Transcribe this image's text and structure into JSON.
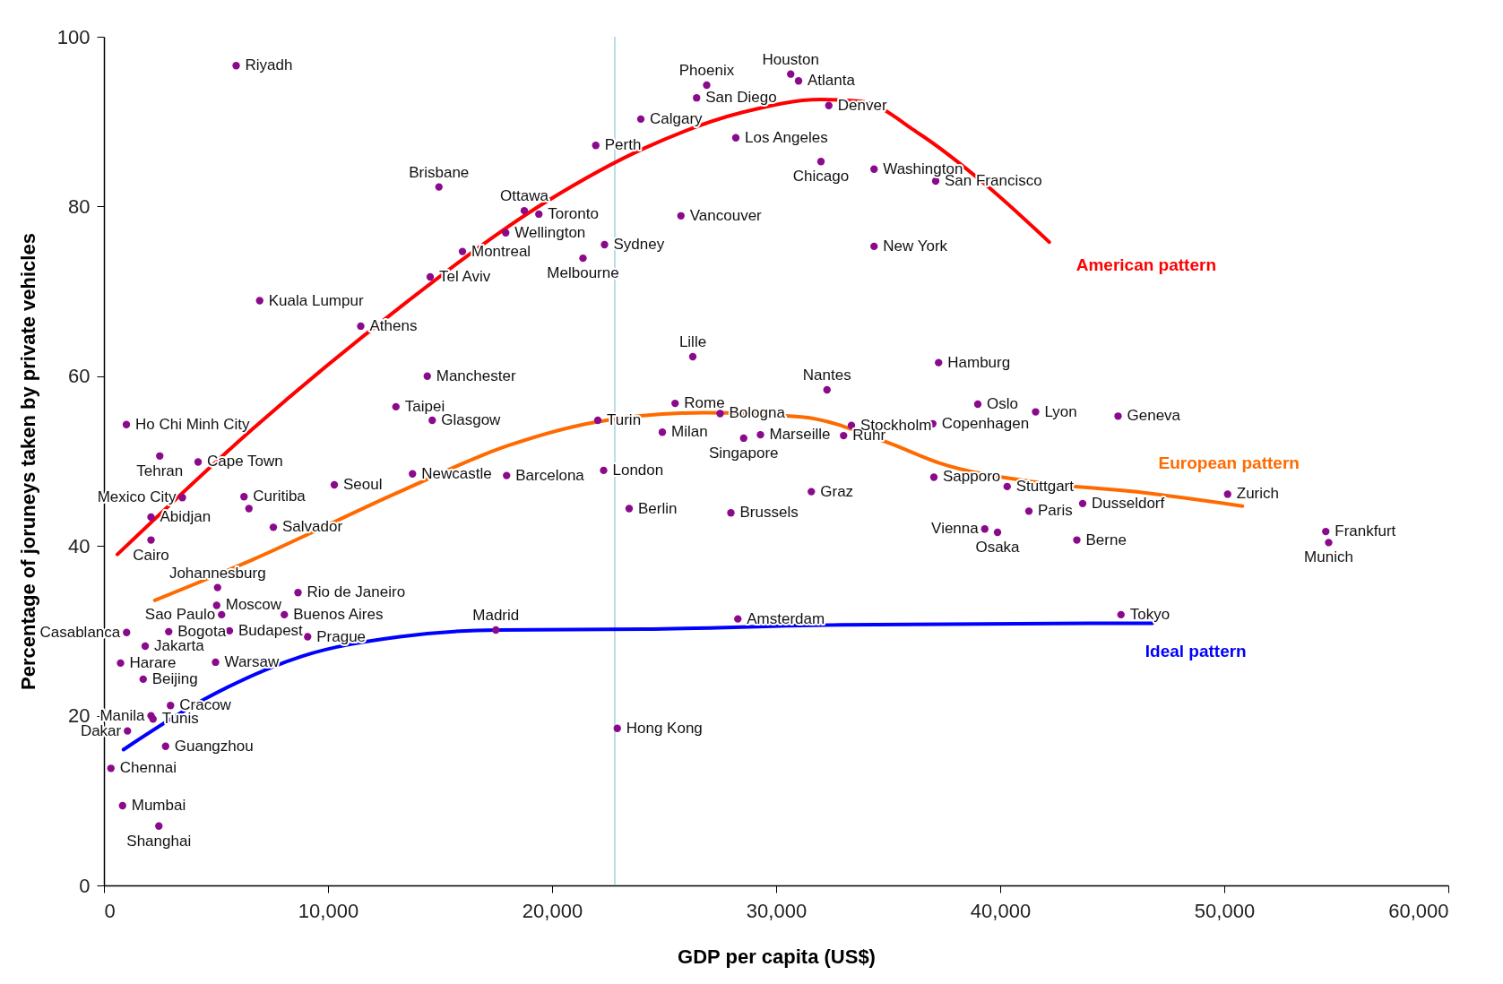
{
  "chart_data": {
    "type": "scatter",
    "xlabel": "GDP per capita (US$)",
    "ylabel": "Percentage of joruneys taken by private vehicles",
    "xlim": [
      0,
      60000
    ],
    "ylim": [
      0,
      100
    ],
    "xticks": [
      0,
      {
        "value": 10000,
        "label": "10,000"
      },
      {
        "value": 20000,
        "label": "20,000"
      },
      {
        "value": 30000,
        "label": "30,000"
      },
      {
        "value": 40000,
        "label": "40,000"
      },
      {
        "value": 50000,
        "label": "50,000"
      },
      {
        "value": 60000,
        "label": "60,000"
      }
    ],
    "yticks": [
      0,
      20,
      40,
      60,
      80,
      100
    ],
    "grid": false,
    "marker": "circle",
    "series": [
      {
        "color": "#8b0a8b",
        "x": [
          5900,
          26900,
          30650,
          31000,
          26450,
          32350,
          23960,
          21950,
          28200,
          32000,
          34370,
          37120,
          14950,
          25750,
          18760,
          19410,
          17930,
          22340,
          21380,
          16000,
          34370,
          14560,
          6950,
          11460,
          26280,
          37250,
          32270,
          14430,
          25490,
          39000,
          41580,
          45260,
          27500,
          33360,
          36990,
          13030,
          14650,
          22040,
          1000,
          24920,
          28550,
          29300,
          33010,
          2490,
          4200,
          37040,
          22300,
          17970,
          13770,
          10280,
          6250,
          6470,
          3500,
          7560,
          31570,
          40310,
          50150,
          43680,
          41280,
          23440,
          27980,
          2100,
          39310,
          39880,
          43420,
          54530,
          54660,
          2100,
          5070,
          8660,
          5030,
          5250,
          8050,
          17490,
          28290,
          45390,
          1010,
          2890,
          5600,
          9090,
          1840,
          740,
          4980,
          1750,
          2100,
          2190,
          2970,
          1050,
          2750,
          22910,
          310,
          830,
          2450
        ],
        "values": [
          96.6,
          94.3,
          95.6,
          94.8,
          92.8,
          91.9,
          90.3,
          87.2,
          88.1,
          85.3,
          84.4,
          83.0,
          82.3,
          78.9,
          79.5,
          79.1,
          76.9,
          75.5,
          73.9,
          74.7,
          75.3,
          71.7,
          68.9,
          65.9,
          62.3,
          61.6,
          58.4,
          60.0,
          56.8,
          56.7,
          55.8,
          55.3,
          55.6,
          54.2,
          54.4,
          56.4,
          54.8,
          54.8,
          54.3,
          53.4,
          52.7,
          53.1,
          53.0,
          50.6,
          49.9,
          48.1,
          48.9,
          48.3,
          48.5,
          47.2,
          45.8,
          44.4,
          45.7,
          42.2,
          46.4,
          47.0,
          46.1,
          45.0,
          44.1,
          44.4,
          43.9,
          43.4,
          42.0,
          41.6,
          40.7,
          41.7,
          40.4,
          40.7,
          35.1,
          34.5,
          33.0,
          31.9,
          31.9,
          30.1,
          31.4,
          31.9,
          29.8,
          29.9,
          30.0,
          29.3,
          28.2,
          26.2,
          26.3,
          24.3,
          20.0,
          19.6,
          21.2,
          18.2,
          16.4,
          18.5,
          13.8,
          9.4,
          7.0
        ],
        "value_labels": [
          "Riyadh",
          "Phoenix",
          "Houston",
          "Atlanta",
          "San Diego",
          "Denver",
          "Calgary",
          "Perth",
          "Los Angeles",
          "Chicago",
          "Washington",
          "San Francisco",
          "Brisbane",
          "Vancouver",
          "Ottawa",
          "Toronto",
          "Wellington",
          "Sydney",
          "Melbourne",
          "Montreal",
          "New York",
          "Tel Aviv",
          "Kuala Lumpur",
          "Athens",
          "Lille",
          "Hamburg",
          "Nantes",
          "Manchester",
          "Rome",
          "Oslo",
          "Lyon",
          "Geneva",
          "Bologna",
          "Stockholm",
          "Copenhagen",
          "Taipei",
          "Glasgow",
          "Turin",
          "Ho Chi Minh City",
          "Milan",
          "Singapore",
          "Marseille",
          "Ruhr",
          "Tehran",
          "Cape Town",
          "Sapporo",
          "London",
          "Barcelona",
          "Newcastle",
          "Seoul",
          "Curitiba",
          null,
          "Mexico City",
          "Salvador",
          "Graz",
          "Stuttgart",
          "Zurich",
          "Dusseldorf",
          "Paris",
          "Berlin",
          "Brussels",
          "Abidjan",
          "Vienna",
          "Osaka",
          "Berne",
          "Frankfurt",
          "Munich",
          "Cairo",
          "Johannesburg",
          "Rio de Janeiro",
          "Moscow",
          "Sao Paulo",
          "Buenos Aires",
          "Madrid",
          "Amsterdam",
          "Tokyo",
          "Casablanca",
          "Bogota",
          "Budapest",
          "Prague",
          "Jakarta",
          "Harare",
          "Warsaw",
          "Beijing",
          "Manila",
          "Tunis",
          "Cracow",
          "Dakar",
          "Guangzhou",
          "Hong Kong",
          "Chennai",
          "Mumbai",
          "Shanghai"
        ]
      },
      {
        "type": "line",
        "marker": "none",
        "name": "American pattern",
        "color": "#ff0000",
        "x": [
          600,
          6640,
          13200,
          19760,
          24140,
          28510,
          32000,
          33750,
          36370,
          39430,
          42190
        ],
        "values": [
          39.0,
          53.8,
          68.1,
          80.6,
          86.9,
          91.1,
          92.6,
          92.4,
          88.6,
          82.4,
          75.8
        ]
      },
      {
        "type": "line",
        "marker": "none",
        "name": "European pattern",
        "color": "#ff6a00",
        "x": [
          2270,
          6650,
          13200,
          18010,
          21950,
          26760,
          31130,
          35070,
          37250,
          41630,
          46000,
          50810
        ],
        "values": [
          33.6,
          38.4,
          46.4,
          51.8,
          54.6,
          55.7,
          55.2,
          52.1,
          49.8,
          47.5,
          46.4,
          44.7
        ]
      },
      {
        "type": "line",
        "marker": "none",
        "name": "Ideal pattern",
        "color": "#0000ff",
        "x": [
          870,
          4460,
          8830,
          13200,
          17580,
          24140,
          32880,
          46790
        ],
        "values": [
          16.0,
          21.9,
          27.0,
          29.3,
          30.1,
          30.2,
          30.7,
          30.9
        ]
      }
    ],
    "ref_lines": [
      {
        "axis": "x",
        "value": 22800,
        "color": "#9fd4dc"
      }
    ]
  }
}
